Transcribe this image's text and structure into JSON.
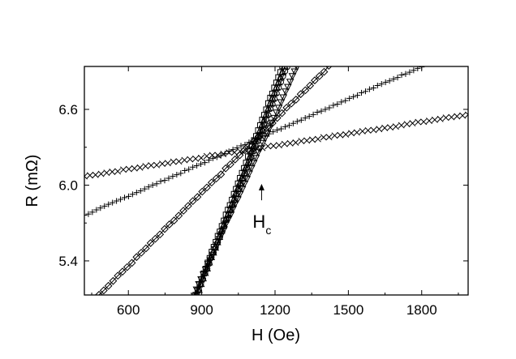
{
  "chart_data": {
    "type": "scatter",
    "title": "",
    "xlabel": "H (Oe)",
    "ylabel": "R (mΩ)",
    "xlim": [
      420,
      1990
    ],
    "ylim": [
      5.13,
      6.94
    ],
    "xticks": [
      600,
      900,
      1200,
      1500,
      1800
    ],
    "yticks": [
      5.4,
      6.0,
      6.6
    ],
    "grid": false,
    "legend": "none",
    "annotation": {
      "main": "H",
      "sub": "c",
      "x": 1145,
      "y_from": 5.88,
      "y_to": 6.01
    },
    "series": [
      {
        "marker": "x",
        "connected": false,
        "x": [
          420,
          1990
        ],
        "y_start": 6.07,
        "y_end": 6.56,
        "count": 70
      },
      {
        "marker": "+",
        "connected": false,
        "x": [
          420,
          1800
        ],
        "y_start": 5.76,
        "y_end": 6.94,
        "count": 85
      },
      {
        "marker": "diamond",
        "connected": true,
        "x": [
          480,
          1420
        ],
        "y_start": 5.13,
        "y_end": 6.94,
        "count": 50
      },
      {
        "marker": "square",
        "connected": true,
        "x": [
          875,
          1230
        ],
        "y_start": 5.13,
        "y_end": 6.94,
        "count": 44
      },
      {
        "marker": "triangle-up",
        "connected": true,
        "x": [
          880,
          1240
        ],
        "y_start": 5.13,
        "y_end": 6.94,
        "count": 44
      },
      {
        "marker": "circle",
        "connected": true,
        "x": [
          880,
          1250
        ],
        "y_start": 5.13,
        "y_end": 6.94,
        "count": 44
      },
      {
        "marker": "triangle-down",
        "connected": true,
        "x": [
          870,
          1290
        ],
        "y_start": 5.13,
        "y_end": 6.94,
        "count": 46
      }
    ]
  }
}
